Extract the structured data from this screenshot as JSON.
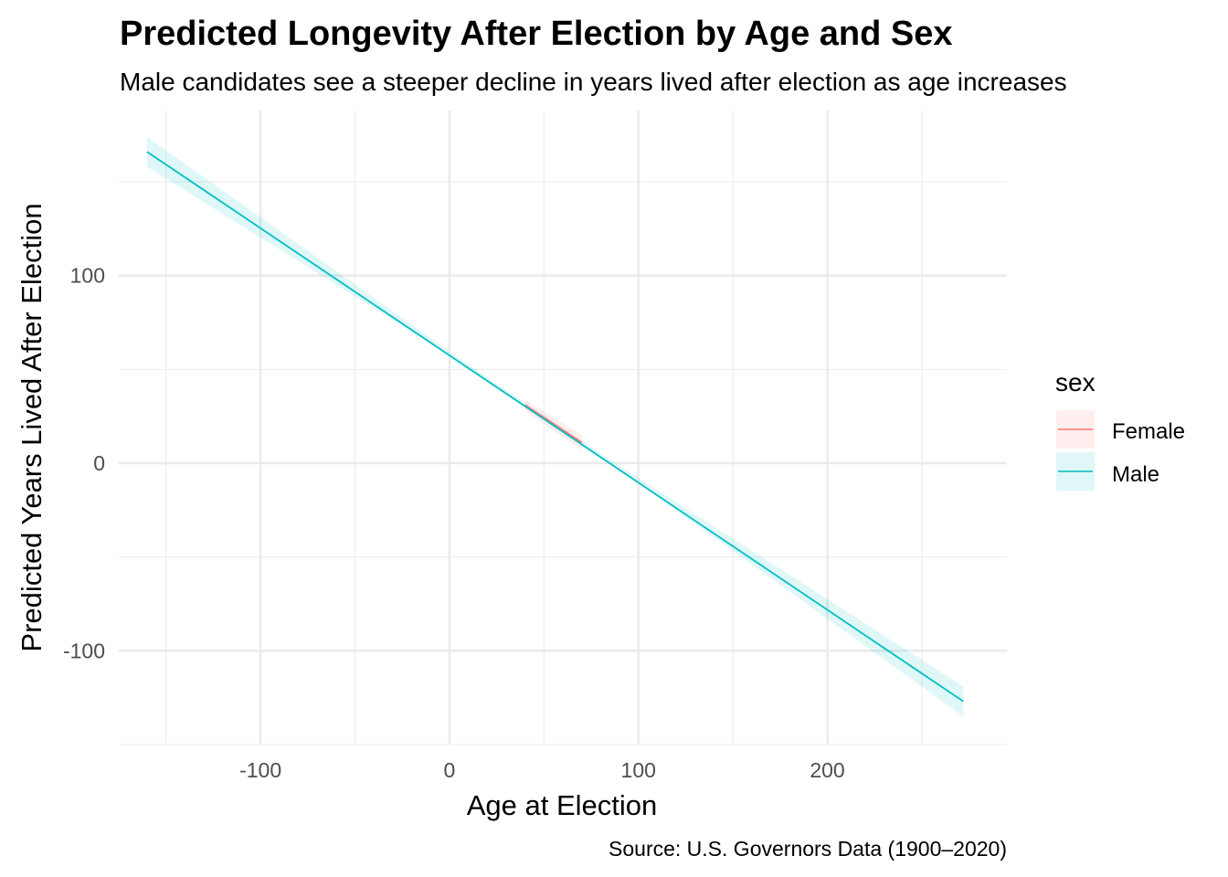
{
  "chart_data": {
    "type": "line",
    "title": "Predicted Longevity After Election by Age and Sex",
    "subtitle": "Male candidates see a steeper decline in years lived after election as age increases",
    "caption": "Source: U.S. Governors Data (1900–2020)",
    "xlabel": "Age at Election",
    "ylabel": "Predicted Years Lived After Election",
    "xlim": [
      -175,
      295
    ],
    "ylim": [
      -150,
      188
    ],
    "x_ticks": [
      -100,
      0,
      100,
      200
    ],
    "y_ticks": [
      -100,
      0,
      100
    ],
    "x_tick_labels": [
      "-100",
      "0",
      "100",
      "200"
    ],
    "y_tick_labels": [
      "-100",
      "0",
      "100"
    ],
    "grid": true,
    "legend": {
      "title": "sex",
      "position": "right"
    },
    "series": [
      {
        "name": "Female",
        "color": "#F8766D",
        "x": [
          40,
          70
        ],
        "y": [
          31,
          11
        ],
        "band": {
          "x": [
            40,
            70
          ],
          "lower": [
            28,
            7
          ],
          "upper": [
            34,
            15
          ]
        }
      },
      {
        "name": "Male",
        "color": "#00BFC4",
        "x": [
          -160,
          272
        ],
        "y": [
          166,
          -127
        ],
        "band": {
          "x": [
            -160,
            0,
            85,
            272
          ],
          "lower": [
            158,
            57.5,
            0.2,
            -135
          ],
          "upper": [
            174,
            59.5,
            1.8,
            -119
          ]
        }
      }
    ]
  }
}
